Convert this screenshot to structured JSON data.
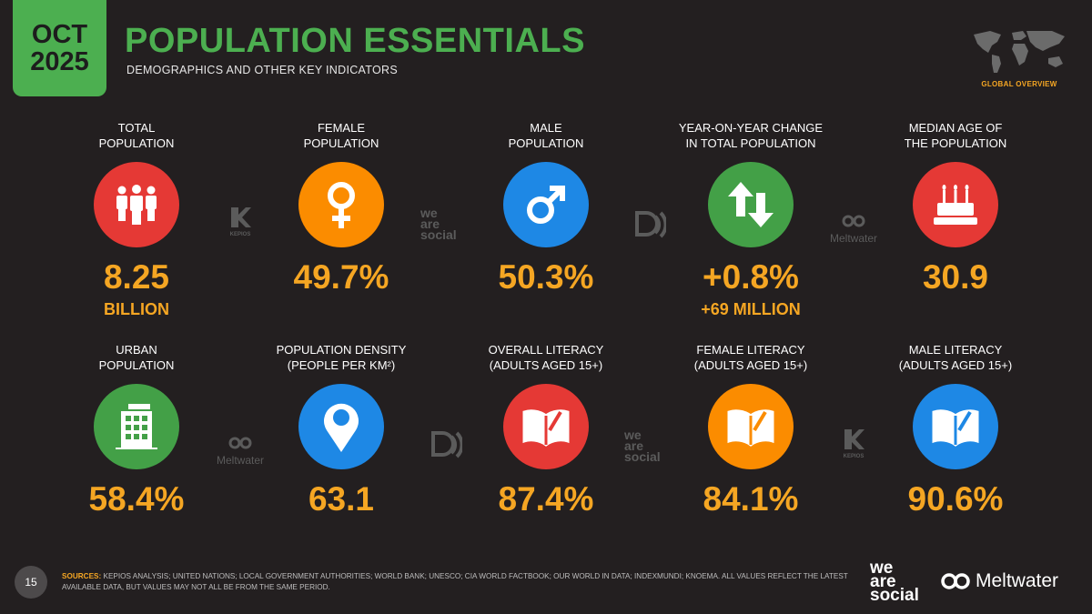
{
  "header": {
    "month": "OCT",
    "year": "2025",
    "title": "POPULATION ESSENTIALS",
    "subtitle": "DEMOGRAPHICS AND OTHER KEY INDICATORS",
    "section": "GLOBAL OVERVIEW"
  },
  "row1": [
    {
      "line1": "TOTAL",
      "line2": "POPULATION",
      "value": "8.25",
      "sub": "BILLION",
      "color": "#e53935",
      "icon": "people-icon"
    },
    {
      "line1": "FEMALE",
      "line2": "POPULATION",
      "value": "49.7%",
      "sub": "",
      "color": "#fb8c00",
      "icon": "female-icon"
    },
    {
      "line1": "MALE",
      "line2": "POPULATION",
      "value": "50.3%",
      "sub": "",
      "color": "#1e88e5",
      "icon": "male-icon"
    },
    {
      "line1": "YEAR-ON-YEAR CHANGE",
      "line2": "IN TOTAL POPULATION",
      "value": "+0.8%",
      "sub": "+69 MILLION",
      "color": "#43a047",
      "icon": "up-down-arrows-icon"
    },
    {
      "line1": "MEDIAN AGE OF",
      "line2": "THE POPULATION",
      "value": "30.9",
      "sub": "",
      "color": "#e53935",
      "icon": "birthday-cake-icon"
    }
  ],
  "row2": [
    {
      "line1": "URBAN",
      "line2": "POPULATION",
      "value": "58.4%",
      "color": "#43a047",
      "icon": "building-icon"
    },
    {
      "line1": "POPULATION DENSITY",
      "line2": "(PEOPLE PER KM²)",
      "value": "63.1",
      "color": "#1e88e5",
      "icon": "map-pin-icon"
    },
    {
      "line1": "OVERALL LITERACY",
      "line2": "(ADULTS AGED 15+)",
      "value": "87.4%",
      "color": "#e53935",
      "icon": "book-icon"
    },
    {
      "line1": "FEMALE LITERACY",
      "line2": "(ADULTS AGED 15+)",
      "value": "84.1%",
      "color": "#fb8c00",
      "icon": "book-icon"
    },
    {
      "line1": "MALE LITERACY",
      "line2": "(ADULTS AGED 15+)",
      "value": "90.6%",
      "color": "#1e88e5",
      "icon": "book-icon"
    }
  ],
  "watermarks": {
    "kepios": "KEPIOS",
    "was1": "we",
    "was2": "are",
    "was3": "social",
    "meltwater": "Meltwater"
  },
  "footer": {
    "page": "15",
    "sources_label": "SOURCES:",
    "sources_text": " KEPIOS ANALYSIS; UNITED NATIONS; LOCAL GOVERNMENT AUTHORITIES; WORLD BANK; UNESCO; CIA WORLD FACTBOOK; OUR WORLD IN DATA; INDEXMUNDI; KNOEMA. ALL VALUES REFLECT THE LATEST AVAILABLE DATA, BUT VALUES MAY NOT ALL BE FROM THE SAME PERIOD.",
    "logo_was1": "we",
    "logo_was2": "are",
    "logo_was3": "social",
    "logo_meltwater": "Meltwater"
  }
}
